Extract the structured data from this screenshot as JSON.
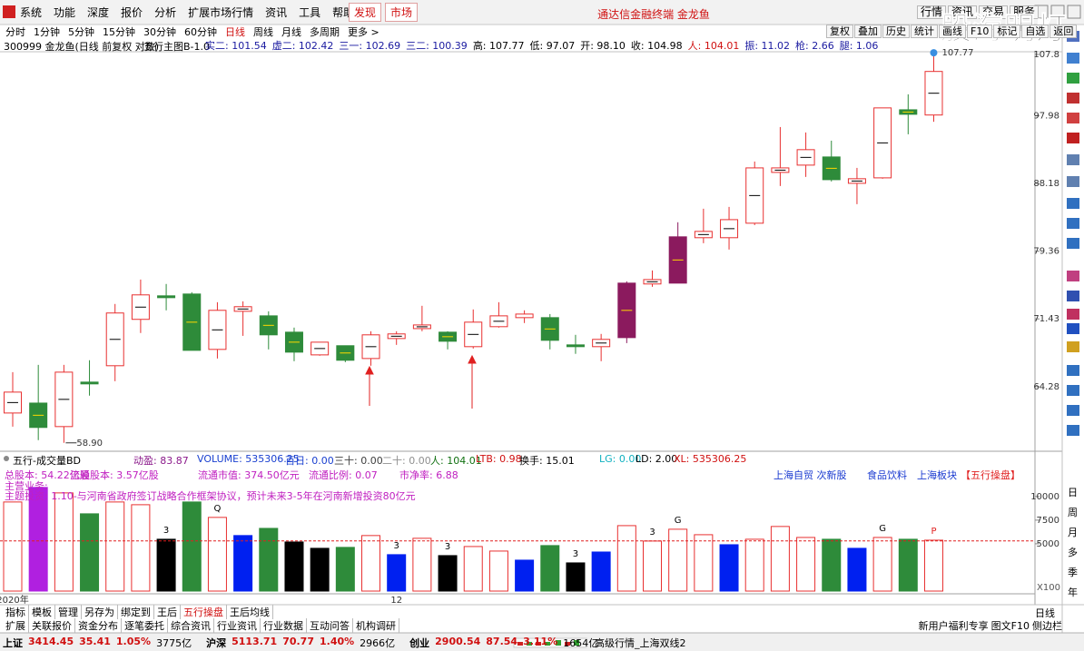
{
  "menu": [
    "系统",
    "功能",
    "深度",
    "报价",
    "分析",
    "扩展市场行情",
    "资讯",
    "工具",
    "帮助"
  ],
  "menu_buttons": [
    "发现",
    "市场"
  ],
  "window_title": "通达信金融终端 金龙鱼",
  "top_tabs": [
    "行情",
    "资讯",
    "交易",
    "服务"
  ],
  "watermark": "股海明灯",
  "periods": [
    {
      "label": "分时"
    },
    {
      "label": "1分钟"
    },
    {
      "label": "5分钟"
    },
    {
      "label": "15分钟"
    },
    {
      "label": "30分钟"
    },
    {
      "label": "60分钟"
    },
    {
      "label": "日线",
      "selected": true
    },
    {
      "label": "周线"
    },
    {
      "label": "月线"
    },
    {
      "label": "多周期"
    },
    {
      "label": "更多 >"
    }
  ],
  "tools": [
    "复权",
    "叠加",
    "历史",
    "统计",
    "画线",
    "F10",
    "标记",
    "自选",
    "返回"
  ],
  "security": "300999 金龙鱼(日线 前复权 对数)",
  "indicator": "五行主图B-1.0",
  "stats": [
    {
      "text": "实二: 101.54",
      "color": "#1a1aa0"
    },
    {
      "text": "虚二: 102.42",
      "color": "#1a1aa0"
    },
    {
      "text": "三一: 102.69",
      "color": "#1a1aa0"
    },
    {
      "text": "三二: 100.39",
      "color": "#1a1aa0"
    },
    {
      "text": "高: 107.77",
      "color": "#000000"
    },
    {
      "text": "低: 97.07",
      "color": "#000000"
    },
    {
      "text": "开: 98.10",
      "color": "#000000"
    },
    {
      "text": "收: 104.98",
      "color": "#000000"
    },
    {
      "text": "人: 104.01",
      "color": "#d01010"
    },
    {
      "text": "振: 11.02",
      "color": "#1a1aa0"
    },
    {
      "text": "枪: 2.66",
      "color": "#1a1aa0"
    },
    {
      "text": "腿: 1.06",
      "color": "#1a1aa0"
    }
  ],
  "chart_data": [
    {
      "type": "candlestick",
      "open": [
        61.7,
        62.66,
        60.41,
        64.74,
        66.41,
        71.38,
        74.04,
        74.25,
        68.12,
        72.28,
        71.77,
        69.97,
        67.54,
        68.51,
        67.16,
        69.28,
        70.36,
        69.97,
        68.41,
        70.57,
        71.57,
        71.57,
        68.6,
        68.41,
        75.52,
        75.42,
        75.52,
        81.05,
        81.05,
        82.9,
        89.72,
        90.74,
        91.9,
        88.21,
        88.96,
        98.9,
        98.1
      ],
      "high": [
        65.75,
        66.5,
        66.5,
        66.98,
        73.11,
        75.94,
        75.42,
        74.46,
        73.31,
        73.41,
        72.28,
        70.47,
        68.89,
        68.51,
        70.07,
        70.07,
        72.9,
        70.07,
        72.49,
        73.31,
        72.39,
        71.97,
        69.68,
        69.78,
        75.73,
        77.02,
        83.02,
        84.79,
        85.03,
        91.25,
        96.28,
        95.47,
        94.26,
        90.35,
        99.19,
        101.31,
        107.77
      ],
      "low": [
        60.41,
        59.15,
        58.9,
        63.39,
        64.83,
        69.88,
        72.39,
        68.02,
        67.16,
        69.57,
        68.12,
        66.88,
        67.45,
        66.78,
        66.41,
        68.6,
        70.07,
        68.12,
        68.21,
        70.47,
        70.97,
        68.12,
        67.65,
        66.88,
        68.79,
        75.09,
        75.52,
        80.36,
        79.57,
        82.66,
        87.84,
        89.09,
        88.46,
        85.39,
        88.84,
        95.2,
        97.07
      ],
      "close": [
        63.74,
        60.33,
        65.75,
        64.56,
        72.09,
        74.15,
        73.83,
        68.02,
        72.39,
        72.8,
        69.68,
        67.83,
        68.89,
        66.98,
        69.68,
        69.78,
        70.76,
        68.99,
        71.07,
        71.77,
        71.97,
        69.09,
        68.41,
        69.19,
        69.38,
        75.94,
        81.16,
        81.85,
        83.36,
        90.35,
        90.35,
        92.95,
        88.71,
        88.84,
        99.19,
        98.21,
        104.98
      ],
      "high_labels": [
        null,
        null,
        null,
        null,
        null,
        null,
        null,
        null,
        null,
        null,
        null,
        null,
        null,
        null,
        null,
        null,
        null,
        null,
        null,
        null,
        null,
        null,
        null,
        null,
        null,
        null,
        null,
        null,
        null,
        null,
        null,
        null,
        null,
        null,
        null,
        null,
        "107.77"
      ],
      "low_labels": [
        null,
        null,
        "58.90",
        null,
        null,
        null,
        null,
        null,
        null,
        null,
        null,
        null,
        null,
        null,
        null,
        null,
        null,
        null,
        null,
        null,
        null,
        null,
        null,
        null,
        null,
        null,
        null,
        null,
        null,
        null,
        null,
        null,
        null,
        null,
        null,
        null,
        null
      ],
      "colors": [
        "#e83030",
        "#2e8b3a",
        "#e83030",
        "#2e8b3a",
        "#e83030",
        "#e83030",
        "#2e8b3a",
        "#2e8b3a",
        "#e83030",
        "#e83030",
        "#2e8b3a",
        "#2e8b3a",
        "#e83030",
        "#2e8b3a",
        "#e83030",
        "#e83030",
        "#e83030",
        "#2e8b3a",
        "#e83030",
        "#e83030",
        "#e83030",
        "#2e8b3a",
        "#2e8b3a",
        "#e83030",
        "#8b1a5e",
        "#e83030",
        "#8b1a5e",
        "#e83030",
        "#e83030",
        "#e83030",
        "#e83030",
        "#e83030",
        "#2e8b3a",
        "#e83030",
        "#e83030",
        "#2e8b3a",
        "#e83030"
      ],
      "filled": [
        false,
        true,
        false,
        true,
        false,
        false,
        true,
        true,
        false,
        false,
        true,
        true,
        false,
        true,
        false,
        false,
        false,
        true,
        false,
        false,
        false,
        true,
        true,
        false,
        true,
        false,
        true,
        false,
        false,
        false,
        false,
        false,
        true,
        false,
        false,
        true,
        false
      ],
      "ylim": [
        58.3,
        108.4
      ],
      "yticks": [
        107.8,
        97.98,
        88.18,
        79.36,
        71.43,
        64.28
      ],
      "log_scale": true
    },
    {
      "type": "bar",
      "values": [
        9420,
        10960,
        10380,
        8170,
        9420,
        9130,
        5480,
        9420,
        7790,
        5870,
        6630,
        5190,
        4520,
        4620,
        5870,
        3850,
        5580,
        3750,
        4710,
        4230,
        3270,
        4810,
        2980,
        4130,
        6920,
        5290,
        6540,
        5960,
        4900,
        5480,
        6830,
        5670,
        5480,
        4520,
        5670,
        5480,
        5380
      ],
      "colors": [
        "#e83030",
        "#b020e0",
        "#e83030",
        "#2e8b3a",
        "#e83030",
        "#e83030",
        "#000000",
        "#2e8b3a",
        "#e83030",
        "#0020f0",
        "#2e8b3a",
        "#000000",
        "#000000",
        "#2e8b3a",
        "#e83030",
        "#0020f0",
        "#e83030",
        "#000000",
        "#e83030",
        "#e83030",
        "#0020f0",
        "#2e8b3a",
        "#000000",
        "#0020f0",
        "#e83030",
        "#e83030",
        "#e83030",
        "#e83030",
        "#0020f0",
        "#e83030",
        "#e83030",
        "#e83030",
        "#2e8b3a",
        "#0020f0",
        "#e83030",
        "#2e8b3a",
        "#e83030"
      ],
      "filled": [
        false,
        true,
        false,
        true,
        false,
        false,
        true,
        true,
        false,
        true,
        true,
        true,
        true,
        true,
        false,
        true,
        false,
        true,
        false,
        false,
        true,
        true,
        true,
        true,
        false,
        false,
        false,
        false,
        true,
        false,
        false,
        false,
        true,
        true,
        false,
        true,
        false
      ],
      "signals": [
        null,
        null,
        null,
        null,
        null,
        null,
        {
          "label": "3",
          "color": "#000000"
        },
        null,
        {
          "label": "Q",
          "color": "#000000"
        },
        null,
        null,
        null,
        null,
        null,
        null,
        {
          "label": "3",
          "color": "#000000"
        },
        null,
        {
          "label": "3",
          "color": "#000000"
        },
        null,
        null,
        null,
        null,
        {
          "label": "3",
          "color": "#000000"
        },
        null,
        null,
        {
          "label": "3",
          "color": "#000000"
        },
        {
          "label": "G",
          "color": "#000000"
        },
        null,
        null,
        null,
        null,
        null,
        null,
        null,
        {
          "label": "G",
          "color": "#000000"
        },
        null,
        {
          "label": "P",
          "color": "#e02020"
        }
      ],
      "categories": [
        "2020年",
        null,
        null,
        null,
        null,
        null,
        null,
        null,
        null,
        null,
        null,
        null,
        null,
        null,
        null,
        "12",
        null,
        null,
        null,
        null,
        null,
        null,
        null,
        null,
        null,
        null,
        null,
        null,
        null,
        null,
        null,
        null,
        null,
        null,
        null,
        null,
        null
      ],
      "reference_line": 5300,
      "reference_color": "#e02020",
      "ylim": [
        0,
        12000
      ],
      "yticks": [
        5000,
        7500,
        10000
      ],
      "unit_label": "X100"
    }
  ],
  "volume_header": [
    {
      "text": "五行-成交量BD",
      "color": "#000000"
    },
    {
      "text": "动盈: 83.87",
      "color": "#8b1a8b"
    },
    {
      "text": "VOLUME: 535306.25",
      "color": "#1a40d0"
    },
    {
      "text": "百日: 0.00",
      "color": "#1a40d0"
    },
    {
      "text": "三十: 0.00",
      "color": "#404040"
    },
    {
      "text": "二十: 0.00",
      "color": "#909090"
    },
    {
      "text": "人: 104.01",
      "color": "#107010"
    },
    {
      "text": "LTB: 0.98",
      "color": "#d01010"
    },
    {
      "text": "换手: 15.01",
      "color": "#000000"
    },
    {
      "text": "LG: 0.00",
      "color": "#10b0c0"
    },
    {
      "text": "LD: 2.00",
      "color": "#000000"
    },
    {
      "text": "XL: 535306.25",
      "color": "#d01010"
    }
  ],
  "info_line": [
    "总股本: 54.22亿股",
    "流通股本: 3.57亿股",
    "流通市值: 374.50亿元",
    "流通比例: 0.07",
    "市净率: 6.88"
  ],
  "sector_tags": [
    {
      "text": "上海自贸 次新股",
      "color": "#1a3ad0"
    },
    {
      "text": "食品饮料",
      "color": "#1a3ad0"
    },
    {
      "text": "上海板块",
      "color": "#1a3ad0"
    },
    {
      "text": "【五行操盘】",
      "color": "#e02020"
    }
  ],
  "business": "主营业务:",
  "theme": "主题投资: 1.10-与河南省政府签订战略合作框架协议，预计未来3-5年在河南新增投资80亿元",
  "tabs": [
    {
      "label": "指标"
    },
    {
      "label": "模板"
    },
    {
      "label": "管理"
    },
    {
      "label": "另存为"
    },
    {
      "label": "绑定到"
    },
    {
      "label": "王后"
    },
    {
      "label": "五行操盘",
      "selected": true
    },
    {
      "label": "王后均线"
    }
  ],
  "period_label": "日线",
  "links": [
    "扩展",
    "关联报价",
    "资金分布",
    "逐笔委托",
    "综合资讯",
    "行业资讯",
    "行业数据",
    "互动问答",
    "机构调研"
  ],
  "links_right": [
    "新用户福利专享",
    "图文F10",
    "侧边栏"
  ],
  "indices": [
    {
      "name": "上证",
      "price": "3414.45",
      "change": "35.41",
      "pct": "1.05%",
      "amount": "3775亿"
    },
    {
      "name": "沪深",
      "price": "5113.71",
      "change": "70.77",
      "pct": "1.40%",
      "amount": "2966亿"
    },
    {
      "name": "创业",
      "price": "2900.54",
      "change": "87.54",
      "pct": "3.11%",
      "amount": "1654亿"
    }
  ],
  "status_text": "高级行情_上海双线2",
  "side_periods": [
    "日",
    "周",
    "月",
    "多",
    "季",
    "年"
  ]
}
